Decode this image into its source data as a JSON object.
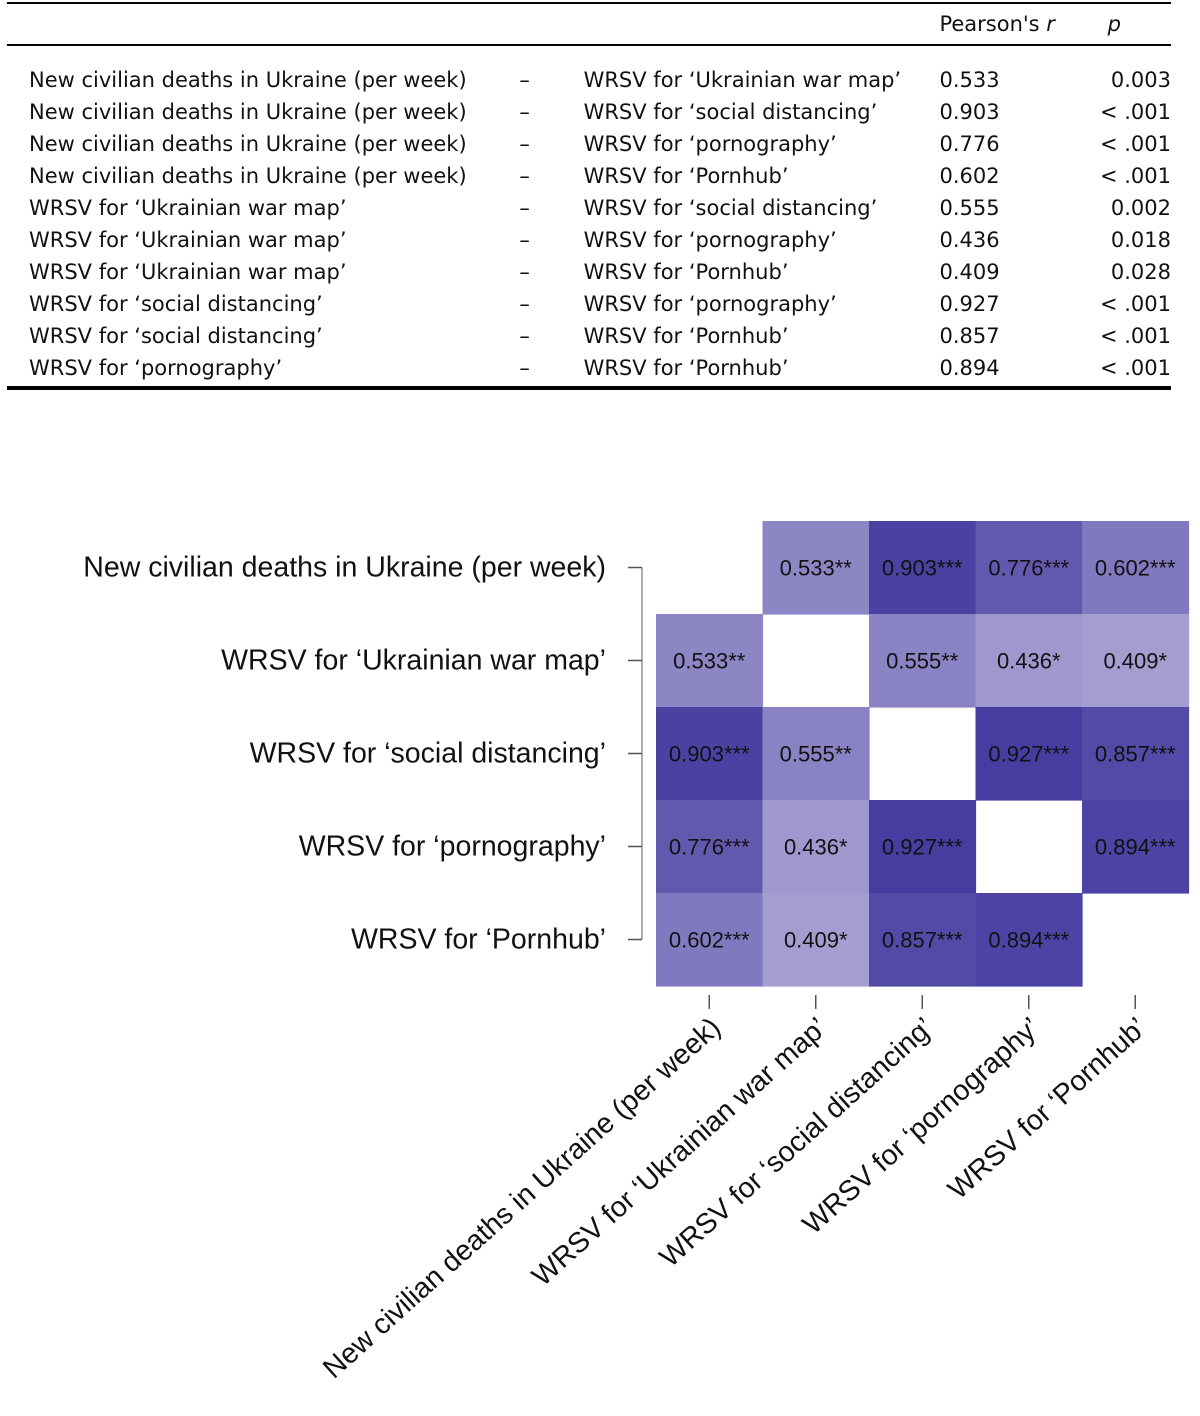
{
  "table": {
    "header": {
      "var1": "",
      "sep": "",
      "var2": "",
      "r_label": "Pearson's",
      "r_symbol": "r",
      "p_symbol": "p"
    },
    "rows": [
      {
        "var1": "New civilian deaths in Ukraine (per week)",
        "sep": "–",
        "var2": "WRSV for ‘Ukrainian war map’",
        "r": "0.533",
        "p": "0.003"
      },
      {
        "var1": "New civilian deaths in Ukraine (per week)",
        "sep": "–",
        "var2": "WRSV for ‘social distancing’",
        "r": "0.903",
        "p": "< .001"
      },
      {
        "var1": "New civilian deaths in Ukraine (per week)",
        "sep": "–",
        "var2": "WRSV for ‘pornography’",
        "r": "0.776",
        "p": "< .001"
      },
      {
        "var1": "New civilian deaths in Ukraine (per week)",
        "sep": "–",
        "var2": "WRSV for ‘Pornhub’",
        "r": "0.602",
        "p": "< .001"
      },
      {
        "var1": "WRSV for ‘Ukrainian war map’",
        "sep": "–",
        "var2": "WRSV for ‘social distancing’",
        "r": "0.555",
        "p": "0.002"
      },
      {
        "var1": "WRSV for ‘Ukrainian war map’",
        "sep": "–",
        "var2": "WRSV for ‘pornography’",
        "r": "0.436",
        "p": "0.018"
      },
      {
        "var1": "WRSV for ‘Ukrainian war map’",
        "sep": "–",
        "var2": "WRSV for ‘Pornhub’",
        "r": "0.409",
        "p": "0.028"
      },
      {
        "var1": "WRSV for ‘social distancing’",
        "sep": "–",
        "var2": "WRSV for ‘pornography’",
        "r": "0.927",
        "p": "< .001"
      },
      {
        "var1": "WRSV for ‘social distancing’",
        "sep": "–",
        "var2": "WRSV for ‘Pornhub’",
        "r": "0.857",
        "p": "< .001"
      },
      {
        "var1": "WRSV for ‘pornography’",
        "sep": "–",
        "var2": "WRSV for ‘Pornhub’",
        "r": "0.894",
        "p": "< .001"
      }
    ]
  },
  "chart_data": {
    "type": "heatmap",
    "title": "",
    "variables": [
      "New civilian deaths in Ukraine (per week)",
      "WRSV for ‘Ukrainian war map’",
      "WRSV for ‘social distancing’",
      "WRSV for ‘pornography’",
      "WRSV for ‘Pornhub’"
    ],
    "matrix": [
      [
        null,
        0.533,
        0.903,
        0.776,
        0.602
      ],
      [
        0.533,
        null,
        0.555,
        0.436,
        0.409
      ],
      [
        0.903,
        0.555,
        null,
        0.927,
        0.857
      ],
      [
        0.776,
        0.436,
        0.927,
        null,
        0.894
      ],
      [
        0.602,
        0.409,
        0.857,
        0.894,
        null
      ]
    ],
    "labels": [
      [
        "",
        "0.533**",
        "0.903***",
        "0.776***",
        "0.602***"
      ],
      [
        "0.533**",
        "",
        "0.555**",
        "0.436*",
        "0.409*"
      ],
      [
        "0.903***",
        "0.555**",
        "",
        "0.927***",
        "0.857***"
      ],
      [
        "0.776***",
        "0.436*",
        "0.927***",
        "",
        "0.894***"
      ],
      [
        "0.602***",
        "0.409*",
        "0.857***",
        "0.894***",
        ""
      ]
    ],
    "color_scale": {
      "low": "#ece9f6",
      "high": "#3a2f9a",
      "range": [
        0,
        1
      ]
    },
    "diagonal_color": "#ffffff"
  }
}
